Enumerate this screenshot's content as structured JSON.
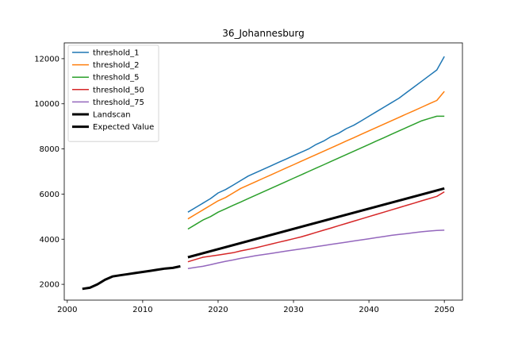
{
  "chart_data": {
    "type": "line",
    "title": "36_Johannesburg",
    "xlabel": "",
    "ylabel": "",
    "xlim": [
      1999.6,
      2052.4
    ],
    "ylim": [
      1300,
      12700
    ],
    "xticks": [
      2000,
      2010,
      2020,
      2030,
      2040,
      2050
    ],
    "yticks": [
      2000,
      4000,
      6000,
      8000,
      10000,
      12000
    ],
    "grid": false,
    "legend_position": "top-left",
    "x": [
      2016,
      2017,
      2018,
      2019,
      2020,
      2021,
      2022,
      2023,
      2024,
      2025,
      2026,
      2027,
      2028,
      2029,
      2030,
      2031,
      2032,
      2033,
      2034,
      2035,
      2036,
      2037,
      2038,
      2039,
      2040,
      2041,
      2042,
      2043,
      2044,
      2045,
      2046,
      2047,
      2048,
      2049,
      2050
    ],
    "series": [
      {
        "name": "threshold_1",
        "color": "#1f77b4",
        "width": 1.5,
        "values": [
          5200,
          5400,
          5600,
          5800,
          6050,
          6200,
          6400,
          6600,
          6800,
          6950,
          7100,
          7250,
          7400,
          7550,
          7700,
          7850,
          8000,
          8200,
          8350,
          8550,
          8700,
          8900,
          9050,
          9250,
          9450,
          9650,
          9850,
          10050,
          10250,
          10500,
          10750,
          11000,
          11250,
          11500,
          12100
        ]
      },
      {
        "name": "threshold_2",
        "color": "#ff7f0e",
        "width": 1.5,
        "values": [
          4900,
          5100,
          5300,
          5500,
          5700,
          5850,
          6050,
          6250,
          6400,
          6550,
          6700,
          6850,
          7000,
          7150,
          7300,
          7450,
          7600,
          7750,
          7900,
          8050,
          8200,
          8350,
          8500,
          8650,
          8800,
          8950,
          9100,
          9250,
          9400,
          9550,
          9700,
          9850,
          10000,
          10150,
          10550
        ]
      },
      {
        "name": "threshold_5",
        "color": "#2ca02c",
        "width": 1.5,
        "values": [
          4450,
          4650,
          4850,
          5000,
          5200,
          5350,
          5500,
          5650,
          5800,
          5950,
          6100,
          6250,
          6400,
          6550,
          6700,
          6850,
          7000,
          7150,
          7300,
          7450,
          7600,
          7750,
          7900,
          8050,
          8200,
          8350,
          8500,
          8650,
          8800,
          8950,
          9100,
          9250,
          9350,
          9450,
          9450
        ]
      },
      {
        "name": "threshold_50",
        "color": "#d62728",
        "width": 1.5,
        "values": [
          3000,
          3100,
          3200,
          3250,
          3300,
          3350,
          3400,
          3480,
          3550,
          3620,
          3700,
          3780,
          3860,
          3940,
          4020,
          4100,
          4200,
          4300,
          4400,
          4500,
          4600,
          4700,
          4800,
          4900,
          5000,
          5100,
          5200,
          5300,
          5400,
          5500,
          5600,
          5700,
          5800,
          5900,
          6100
        ]
      },
      {
        "name": "threshold_75",
        "color": "#9467bd",
        "width": 1.5,
        "values": [
          2700,
          2750,
          2800,
          2870,
          2950,
          3020,
          3080,
          3150,
          3210,
          3270,
          3320,
          3370,
          3420,
          3470,
          3520,
          3570,
          3620,
          3670,
          3720,
          3770,
          3820,
          3870,
          3920,
          3970,
          4020,
          4070,
          4120,
          4170,
          4210,
          4250,
          4290,
          4330,
          4360,
          4390,
          4400
        ]
      },
      {
        "name": "Landscan",
        "color": "#000000",
        "width": 3,
        "x": [
          2002,
          2003,
          2004,
          2005,
          2006,
          2007,
          2008,
          2009,
          2010,
          2011,
          2012,
          2013,
          2014,
          2015
        ],
        "values": [
          1800,
          1850,
          2000,
          2200,
          2350,
          2400,
          2450,
          2500,
          2550,
          2600,
          2650,
          2700,
          2730,
          2800
        ]
      },
      {
        "name": "Expected Value",
        "color": "#000000",
        "width": 3,
        "x": [
          2016,
          2050
        ],
        "values": [
          3200,
          6250
        ]
      }
    ]
  }
}
